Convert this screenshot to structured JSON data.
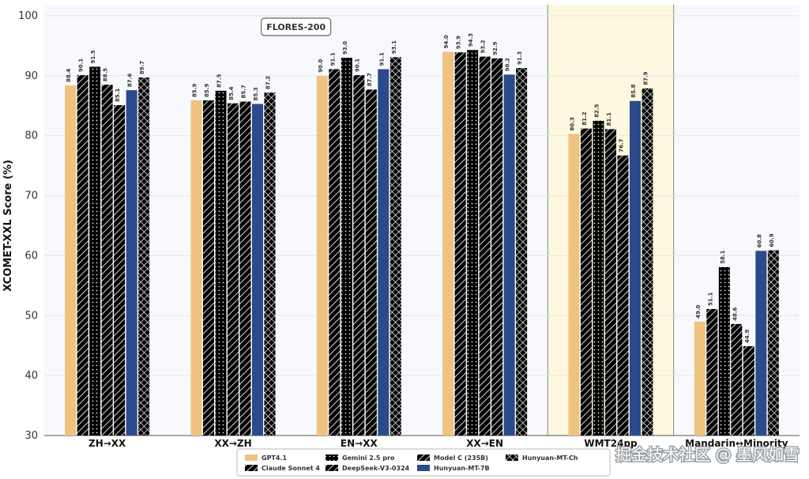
{
  "chart_data": {
    "type": "bar",
    "ylabel": "XCOMET-XXL Score (%)",
    "ylim": [
      30,
      100
    ],
    "yticks": [
      30,
      40,
      50,
      60,
      70,
      80,
      90,
      100
    ],
    "grid": true,
    "categories": [
      "ZH→XX",
      "XX→ZH",
      "EN→XX",
      "XX→EN",
      "WMT24pp",
      "Mandarin↔Minority"
    ],
    "annotations": [
      {
        "text": "FLORES-200",
        "style": "boxed"
      }
    ],
    "highlighted_category": "WMT24pp",
    "series": [
      {
        "name": "GPT4.1",
        "color": "#f0c27f",
        "pattern": "solid",
        "values": [
          88.4,
          85.9,
          90.0,
          94.0,
          80.3,
          49.0
        ],
        "labels": [
          "88.4",
          "85.9",
          "90.0",
          "94.0",
          "80.3",
          "49.0"
        ]
      },
      {
        "name": "Claude Sonnet 4",
        "color": "#e07a6e",
        "pattern": "diagonal",
        "values": [
          90.1,
          85.9,
          91.1,
          93.9,
          81.2,
          51.1
        ],
        "labels": [
          "90.1",
          "85.9",
          "91.1",
          "93.9",
          "81.2",
          "51.1"
        ]
      },
      {
        "name": "Gemini 2.5 pro",
        "color": "#d9685c",
        "pattern": "dots",
        "values": [
          91.5,
          87.5,
          93.0,
          94.3,
          82.5,
          58.1
        ],
        "labels": [
          "91.5",
          "87.5",
          "93.0",
          "94.3",
          "82.5",
          "58.1"
        ]
      },
      {
        "name": "DeepSeek-V3-0324",
        "color": "#f7e7a8",
        "pattern": "diagonal",
        "values": [
          88.5,
          85.4,
          90.1,
          93.2,
          81.1,
          48.6
        ],
        "labels": [
          "88.5",
          "85.4",
          "90.1",
          "93.2",
          "81.1",
          "48.6"
        ]
      },
      {
        "name": "Model C (235B)",
        "color": "#a48ad6",
        "pattern": "diagonal",
        "values": [
          85.1,
          85.7,
          87.7,
          92.9,
          76.7,
          44.9
        ],
        "labels": [
          "85.1",
          "85.7",
          "87.7",
          "92.9",
          "76.7",
          "44.9"
        ]
      },
      {
        "name": "Hunyuan-MT-7B",
        "color": "#2b4a8b",
        "pattern": "solid",
        "values": [
          87.6,
          85.3,
          91.1,
          90.2,
          85.8,
          60.8
        ],
        "labels": [
          "87.6",
          "85.3",
          "91.1",
          "90.2",
          "85.8",
          "60.8"
        ]
      },
      {
        "name": "Hunyuan-MT-Ch",
        "color": "#4f9a68",
        "pattern": "cross",
        "values": [
          89.7,
          87.2,
          93.1,
          91.3,
          87.9,
          60.9
        ],
        "labels": [
          "89.7",
          "87.2",
          "93.1",
          "91.3",
          "87.9",
          "60.9"
        ]
      }
    ],
    "legend_position": "bottom-center"
  },
  "watermark": "掘金技术社区 @ 墨风如雪"
}
